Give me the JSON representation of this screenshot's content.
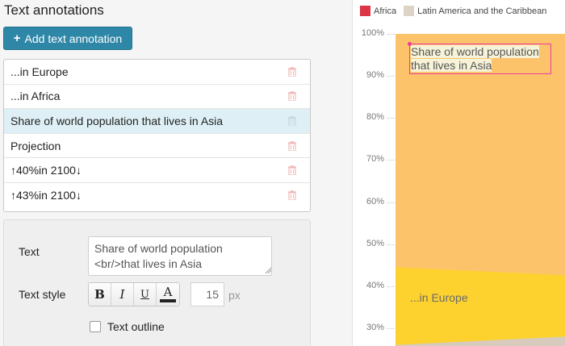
{
  "panel": {
    "title": "Text annotations",
    "add_button_label": "Add text annotation",
    "add_button_icon": "plus-icon",
    "annotations": [
      {
        "label": "...in Europe",
        "selected": false
      },
      {
        "label": "...in Africa",
        "selected": false
      },
      {
        "label": "Share of world population that lives in Asia",
        "selected": true
      },
      {
        "label": "Projection",
        "selected": false
      },
      {
        "label": "↑40%in 2100↓",
        "selected": false
      },
      {
        "label": "↑43%in 2100↓",
        "selected": false
      }
    ],
    "delete_icon": "trash-icon"
  },
  "editor": {
    "text_label": "Text",
    "text_value": "Share of world population\n<br/>that lives in Asia",
    "text_style_label": "Text style",
    "bold_label": "B",
    "italic_label": "I",
    "underline_label": "U",
    "color_label": "A",
    "font_size": "15",
    "font_size_unit": "px",
    "outline_label": "Text outline",
    "outline_checked": false
  },
  "chart_data": {
    "type": "area",
    "legend": [
      {
        "name": "Africa",
        "color": "#dc3545"
      },
      {
        "name": "Latin America and the Caribbean",
        "color": "#ddd3c7"
      }
    ],
    "y_ticks": [
      "100%",
      "90%",
      "80%",
      "70%",
      "60%",
      "50%",
      "40%",
      "30%"
    ],
    "ylim": [
      25,
      100
    ],
    "y_tick_values": [
      100,
      90,
      80,
      70,
      60,
      50,
      40,
      30
    ],
    "colors": {
      "asia": "#fdc36b",
      "europe": "#fdd22f",
      "latin_america": "#d8cbbd"
    },
    "series": [
      {
        "values": [
          100,
          100
        ]
      },
      {
        "values": [
          44.5,
          42.6
        ]
      },
      {
        "values": [
          26,
          28
        ]
      }
    ],
    "annotations": [
      {
        "text": "Share of world population that lives in Asia",
        "line1": "Share of world population",
        "line2": "that lives in Asia"
      },
      {
        "text": "...in Europe"
      }
    ]
  }
}
